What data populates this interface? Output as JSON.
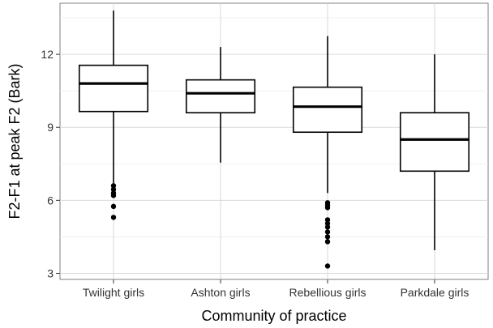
{
  "chart_data": {
    "type": "box",
    "title": "",
    "xlabel": "Community of practice",
    "ylabel": "F2-F1 at peak F2 (Bark)",
    "ylim": [
      2.75,
      14.1
    ],
    "yticks": [
      3,
      6,
      9,
      12
    ],
    "ytick_labels": [
      "3",
      "6",
      "9",
      "12"
    ],
    "grid": true,
    "legend": "none",
    "categories": [
      "Twilight girls",
      "Ashton girls",
      "Rebellious girls",
      "Parkdale girls"
    ],
    "boxes": [
      {
        "category": "Twilight girls",
        "whisker_low": 6.7,
        "q1": 9.65,
        "median": 10.8,
        "q3": 11.55,
        "whisker_high": 13.8,
        "outliers": [
          6.6,
          6.45,
          6.3,
          6.2,
          5.75,
          5.3
        ]
      },
      {
        "category": "Ashton girls",
        "whisker_low": 7.55,
        "q1": 9.6,
        "median": 10.4,
        "q3": 10.95,
        "whisker_high": 12.3,
        "outliers": []
      },
      {
        "category": "Rebellious girls",
        "whisker_low": 6.3,
        "q1": 8.8,
        "median": 9.85,
        "q3": 10.65,
        "whisker_high": 12.75,
        "outliers": [
          5.9,
          5.8,
          5.7,
          5.2,
          5.05,
          4.9,
          4.7,
          4.5,
          4.3,
          3.3
        ]
      },
      {
        "category": "Parkdale girls",
        "whisker_low": 3.95,
        "q1": 7.2,
        "median": 8.5,
        "q3": 9.6,
        "whisker_high": 12.0,
        "outliers": []
      }
    ],
    "colors": {
      "panel": "#ffffff",
      "grid": "#d9d9d9",
      "box_stroke": "#000000",
      "box_fill": "#ffffff"
    }
  }
}
